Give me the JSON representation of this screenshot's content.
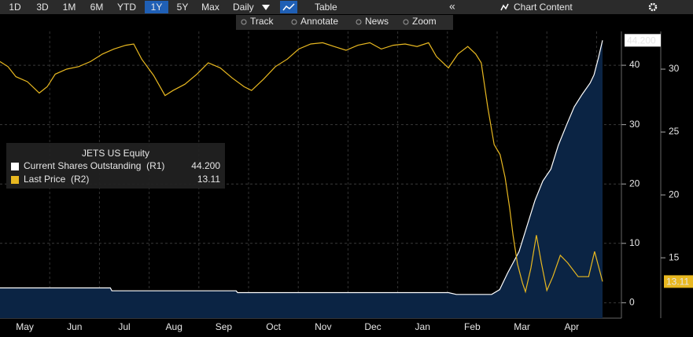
{
  "toolbar": {
    "ranges": [
      "1D",
      "3D",
      "1M",
      "6M",
      "YTD",
      "1Y",
      "5Y",
      "Max"
    ],
    "active_range": "1Y",
    "frequency": "Daily",
    "table": "Table",
    "chart_content": "Chart Content",
    "tools": [
      "Track",
      "Annotate",
      "News",
      "Zoom"
    ]
  },
  "chart_data": {
    "type": "line",
    "legend_title": "JETS US Equity",
    "legend": "left",
    "grid": true,
    "xlim": [
      0,
      12.5
    ],
    "xticks": [
      {
        "value": 0.5,
        "label": "May"
      },
      {
        "value": 1.5,
        "label": "Jun"
      },
      {
        "value": 2.5,
        "label": "Jul"
      },
      {
        "value": 3.5,
        "label": "Aug"
      },
      {
        "value": 4.5,
        "label": "Sep"
      },
      {
        "value": 5.5,
        "label": "Oct"
      },
      {
        "value": 6.5,
        "label": "Nov"
      },
      {
        "value": 7.5,
        "label": "Dec"
      },
      {
        "value": 8.5,
        "label": "Jan"
      },
      {
        "value": 9.5,
        "label": "Feb"
      },
      {
        "value": 10.5,
        "label": "Mar"
      },
      {
        "value": 11.5,
        "label": "Apr"
      }
    ],
    "ylim": [
      -2.6,
      45.7
    ],
    "yticks": [
      0,
      10,
      20,
      30,
      40
    ],
    "y2lim": [
      10.2,
      33
    ],
    "y2ticks": [
      15,
      20,
      25,
      30
    ],
    "series": [
      {
        "name": "Current Shares Outstanding  (R1)",
        "color": "#ffffff",
        "fill": "#0b2444",
        "axis": "y",
        "x": [
          0,
          2.22,
          2.25,
          4.75,
          4.78,
          9.02,
          9.18,
          9.89,
          10.05,
          10.21,
          10.44,
          10.76,
          10.92,
          11.08,
          11.23,
          11.39,
          11.55,
          11.71,
          11.87,
          11.95,
          12.03,
          12.12
        ],
        "values": [
          2.5,
          2.5,
          2.0,
          2.0,
          1.7,
          1.7,
          1.4,
          1.4,
          2.2,
          5.0,
          8.6,
          17.2,
          20.5,
          22.5,
          26.5,
          29.8,
          33.0,
          35.1,
          37.0,
          38.4,
          41.0,
          44.2
        ],
        "value_labels": [
          null,
          null,
          null,
          null,
          null,
          null,
          null,
          null,
          null,
          null,
          null,
          null,
          null,
          null,
          null,
          null,
          null,
          null,
          null,
          null,
          null,
          "44.200"
        ]
      },
      {
        "name": "Last Price  (R2)",
        "color": "#e8b820",
        "axis": "y2",
        "x": [
          0,
          0.16,
          0.32,
          0.55,
          0.79,
          0.95,
          1.11,
          1.34,
          1.58,
          1.82,
          2.06,
          2.29,
          2.53,
          2.69,
          2.85,
          3.09,
          3.32,
          3.48,
          3.72,
          3.96,
          4.19,
          4.43,
          4.67,
          4.91,
          5.06,
          5.3,
          5.54,
          5.78,
          6.01,
          6.25,
          6.49,
          6.72,
          6.96,
          7.2,
          7.44,
          7.67,
          7.91,
          8.15,
          8.39,
          8.62,
          8.78,
          9.02,
          9.21,
          9.41,
          9.57,
          9.68,
          9.81,
          9.94,
          10.06,
          10.16,
          10.25,
          10.32,
          10.41,
          10.51,
          10.57,
          10.68,
          10.79,
          10.89,
          11.0,
          11.12,
          11.27,
          11.42,
          11.63,
          11.84,
          11.96,
          12.12
        ],
        "values": [
          30.6,
          30.2,
          29.4,
          29.0,
          28.1,
          28.6,
          29.6,
          30.0,
          30.2,
          30.6,
          31.2,
          31.6,
          31.9,
          32.0,
          30.8,
          29.5,
          27.9,
          28.3,
          28.8,
          29.6,
          30.5,
          30.1,
          29.3,
          28.6,
          28.3,
          29.2,
          30.2,
          30.8,
          31.6,
          32.0,
          32.1,
          31.8,
          31.5,
          31.9,
          32.1,
          31.6,
          31.9,
          32.0,
          31.8,
          32.1,
          31.0,
          30.1,
          31.2,
          31.8,
          31.2,
          30.5,
          27.0,
          24.0,
          23.2,
          21.4,
          19.0,
          16.8,
          14.5,
          13.0,
          12.3,
          14.2,
          16.8,
          14.6,
          12.4,
          13.5,
          15.2,
          14.6,
          13.5,
          13.5,
          15.5,
          13.11
        ]
      }
    ]
  }
}
